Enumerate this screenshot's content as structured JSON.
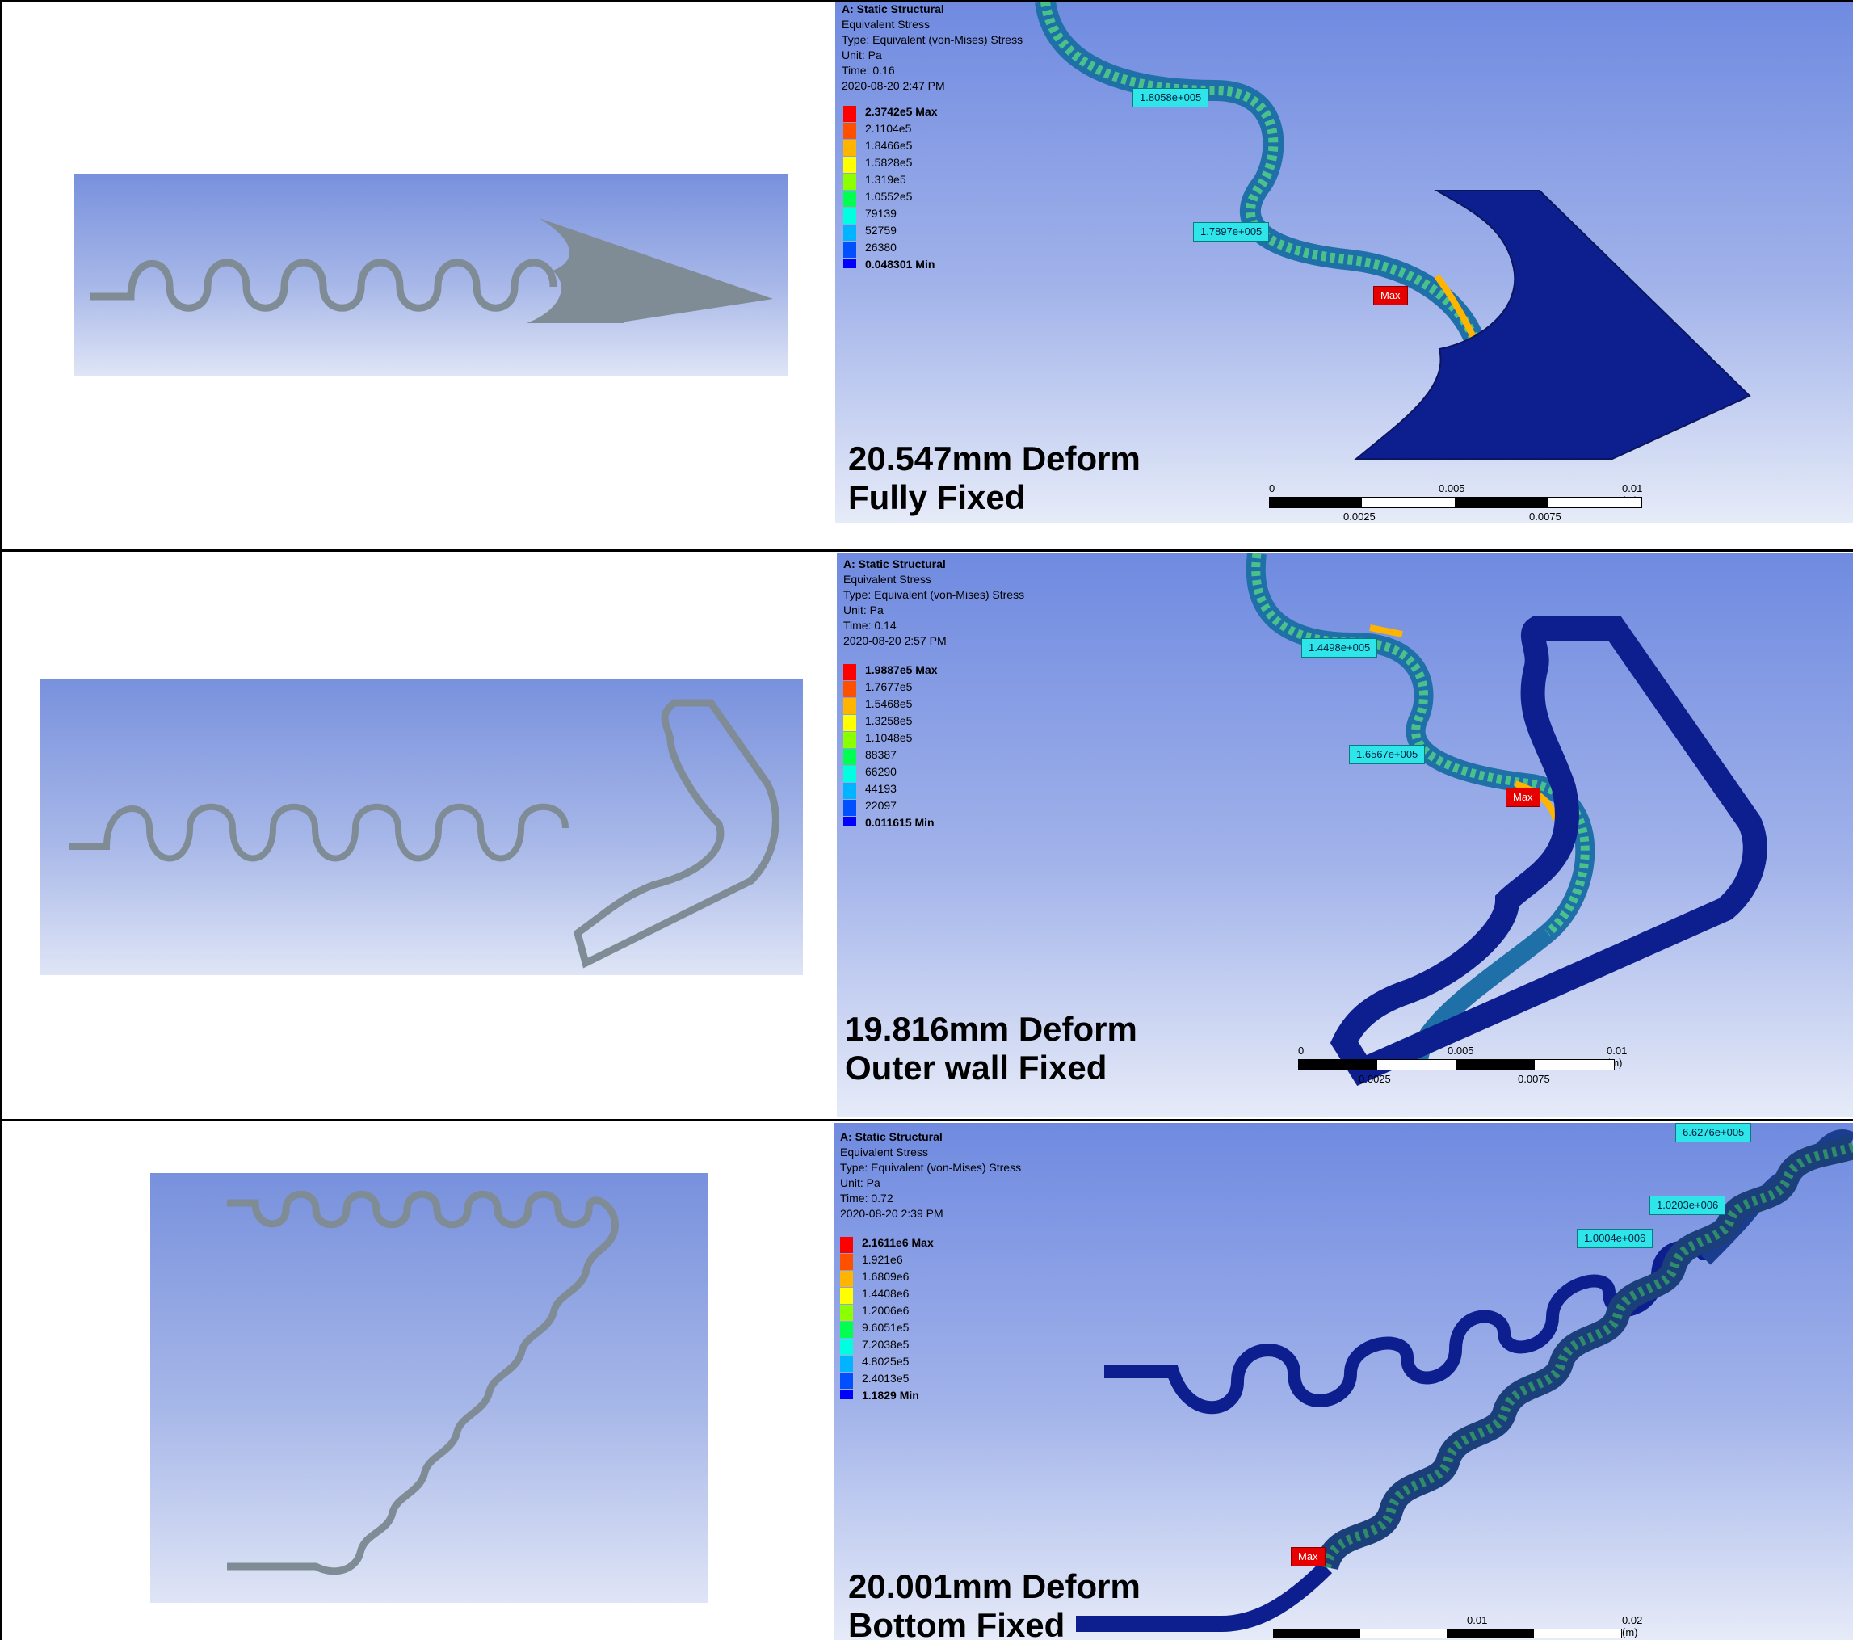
{
  "colors": {
    "contour": [
      "#0000ff",
      "#0050ff",
      "#00b4ff",
      "#00ffe0",
      "#00ff50",
      "#8cff00",
      "#ffff00",
      "#ffb400",
      "#ff5000",
      "#ff0000"
    ],
    "mesh_fill": "#0d1f8f",
    "geometry_gray": "#7f8c95"
  },
  "panels": [
    {
      "analysis": "A: Static Structural",
      "result": "Equivalent Stress",
      "type": "Type: Equivalent (von-Mises) Stress",
      "unit": "Unit: Pa",
      "time": "Time: 0.16",
      "date": "2020-08-20 2:47 PM",
      "legend": [
        "2.3742e5 Max",
        "2.1104e5",
        "1.8466e5",
        "1.5828e5",
        "1.319e5",
        "1.0552e5",
        "79139",
        "52759",
        "26380",
        "0.048301 Min"
      ],
      "probes": [
        "1.8058e+005",
        "1.7897e+005"
      ],
      "max_tag": "Max",
      "caption_line1": "20.547mm Deform",
      "caption_line2": "Fully Fixed",
      "scale_top": [
        "0",
        "0.005",
        "0.01 (m)"
      ],
      "scale_bottom": [
        "0.0025",
        "0.0075"
      ]
    },
    {
      "analysis": "A: Static Structural",
      "result": "Equivalent Stress",
      "type": "Type: Equivalent (von-Mises) Stress",
      "unit": "Unit: Pa",
      "time": "Time: 0.14",
      "date": "2020-08-20 2:57 PM",
      "legend": [
        "1.9887e5 Max",
        "1.7677e5",
        "1.5468e5",
        "1.3258e5",
        "1.1048e5",
        "88387",
        "66290",
        "44193",
        "22097",
        "0.011615 Min"
      ],
      "probes": [
        "1.4498e+005",
        "1.6567e+005"
      ],
      "max_tag": "Max",
      "caption_line1": "19.816mm Deform",
      "caption_line2": "Outer wall Fixed",
      "scale_top": [
        "0",
        "0.005",
        "0.01 (m)"
      ],
      "scale_bottom": [
        "0.0025",
        "0.0075"
      ]
    },
    {
      "analysis": "A: Static Structural",
      "result": "Equivalent Stress",
      "type": "Type: Equivalent (von-Mises) Stress",
      "unit": "Unit: Pa",
      "time": "Time: 0.72",
      "date": "2020-08-20 2:39 PM",
      "legend": [
        "2.1611e6 Max",
        "1.921e6",
        "1.6809e6",
        "1.4408e6",
        "1.2006e6",
        "9.6051e5",
        "7.2038e5",
        "4.8025e5",
        "2.4013e5",
        "1.1829 Min"
      ],
      "probes": [
        "6.6276e+005",
        "1.0203e+006",
        "1.0004e+006"
      ],
      "max_tag": "Max",
      "caption_line1": "20.001mm Deform",
      "caption_line2": "Bottom Fixed",
      "scale_top": [
        "0.01",
        "0.02 (m)"
      ],
      "scale_bottom": []
    }
  ]
}
